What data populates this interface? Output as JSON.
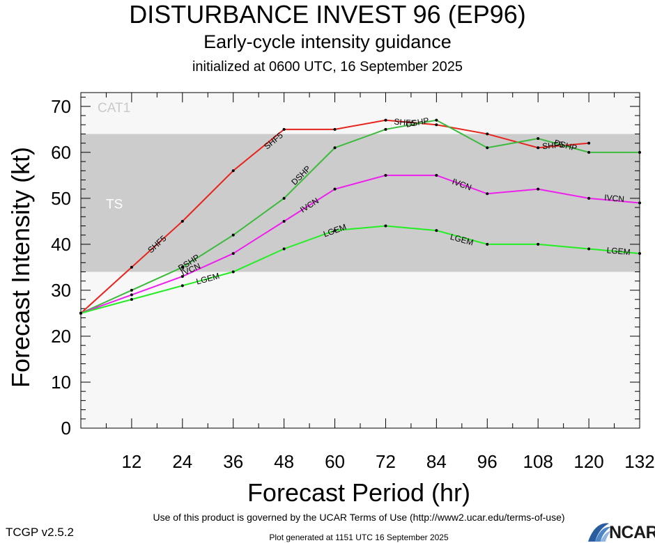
{
  "titles": {
    "main": "DISTURBANCE INVEST 96 (EP96)",
    "sub": "Early-cycle intensity guidance",
    "init": "initialized at 0600 UTC, 16 September 2025"
  },
  "footer": {
    "terms": "Use of this product is governed by the UCAR Terms of Use (http://www2.ucar.edu/terms-of-use)",
    "version": "TCGP v2.5.2",
    "generated": "Plot generated at 1151 UTC   16 September 2025",
    "logo_text": "NCAR"
  },
  "chart_data": {
    "type": "line",
    "xlabel": "Forecast Period (hr)",
    "ylabel": "Forecast Intensity (kt)",
    "xlim": [
      0,
      132
    ],
    "ylim": [
      0,
      73
    ],
    "xticks": [
      12,
      24,
      36,
      48,
      60,
      72,
      84,
      96,
      108,
      120,
      132
    ],
    "yticks": [
      0,
      10,
      20,
      30,
      40,
      50,
      60,
      70
    ],
    "grid": false,
    "bands": [
      {
        "label": "TS",
        "from": 34,
        "to": 64,
        "color": "#cccccc"
      },
      {
        "label": "CAT1",
        "from": 64,
        "to": 73,
        "color": "#f7f7f7"
      }
    ],
    "series": [
      {
        "name": "SHF5",
        "color": "#e8231b",
        "x": [
          0,
          12,
          24,
          36,
          48,
          60,
          72,
          84,
          96,
          108,
          120
        ],
        "y": [
          25,
          35,
          45,
          56,
          65,
          65,
          67,
          66,
          64,
          61,
          62
        ]
      },
      {
        "name": "DSHP",
        "color": "#3cba3c",
        "x": [
          0,
          12,
          24,
          36,
          48,
          60,
          72,
          84,
          96,
          108,
          120,
          132
        ],
        "y": [
          25,
          30,
          35,
          42,
          50,
          61,
          65,
          67,
          61,
          63,
          60,
          60
        ]
      },
      {
        "name": "IVCN",
        "color": "#ee1fee",
        "x": [
          0,
          12,
          24,
          36,
          48,
          60,
          72,
          84,
          96,
          108,
          120,
          132
        ],
        "y": [
          25,
          29,
          33,
          38,
          45,
          52,
          55,
          55,
          51,
          52,
          50,
          49
        ]
      },
      {
        "name": "LGEM",
        "color": "#22ee22",
        "x": [
          0,
          12,
          24,
          36,
          48,
          60,
          72,
          84,
          96,
          108,
          120,
          132
        ],
        "y": [
          25,
          28,
          31,
          34,
          39,
          43,
          44,
          43,
          40,
          40,
          39,
          38
        ]
      }
    ],
    "line_labels": [
      {
        "series": "SHF5",
        "text": "SHF5",
        "x": 18,
        "y": 40
      },
      {
        "series": "SHF5",
        "text": "SHF5",
        "x": 45.5,
        "y": 62.5
      },
      {
        "series": "SHF5",
        "text": "SHF5",
        "x": 76.5,
        "y": 66.5
      },
      {
        "series": "SHF5",
        "text": "SHF5",
        "x": 111.5,
        "y": 61.5
      },
      {
        "series": "DSHP",
        "text": "DSHP",
        "x": 25.5,
        "y": 36
      },
      {
        "series": "DSHP",
        "text": "DSHP",
        "x": 52,
        "y": 55
      },
      {
        "series": "DSHP",
        "text": "DSHP",
        "x": 79.5,
        "y": 66.5
      },
      {
        "series": "DSHP",
        "text": "DSHP",
        "x": 114.5,
        "y": 61.5
      },
      {
        "series": "IVCN",
        "text": "IVCN",
        "x": 26,
        "y": 34.5
      },
      {
        "series": "IVCN",
        "text": "IVCN",
        "x": 54,
        "y": 48.5
      },
      {
        "series": "IVCN",
        "text": "IVCN",
        "x": 90,
        "y": 53
      },
      {
        "series": "IVCN",
        "text": "IVCN",
        "x": 126,
        "y": 50
      },
      {
        "series": "LGEM",
        "text": "LGEM",
        "x": 30,
        "y": 32.5
      },
      {
        "series": "LGEM",
        "text": "LGEM",
        "x": 60,
        "y": 43
      },
      {
        "series": "LGEM",
        "text": "LGEM",
        "x": 90,
        "y": 41
      },
      {
        "series": "LGEM",
        "text": "LGEM",
        "x": 127,
        "y": 38.5
      }
    ]
  }
}
